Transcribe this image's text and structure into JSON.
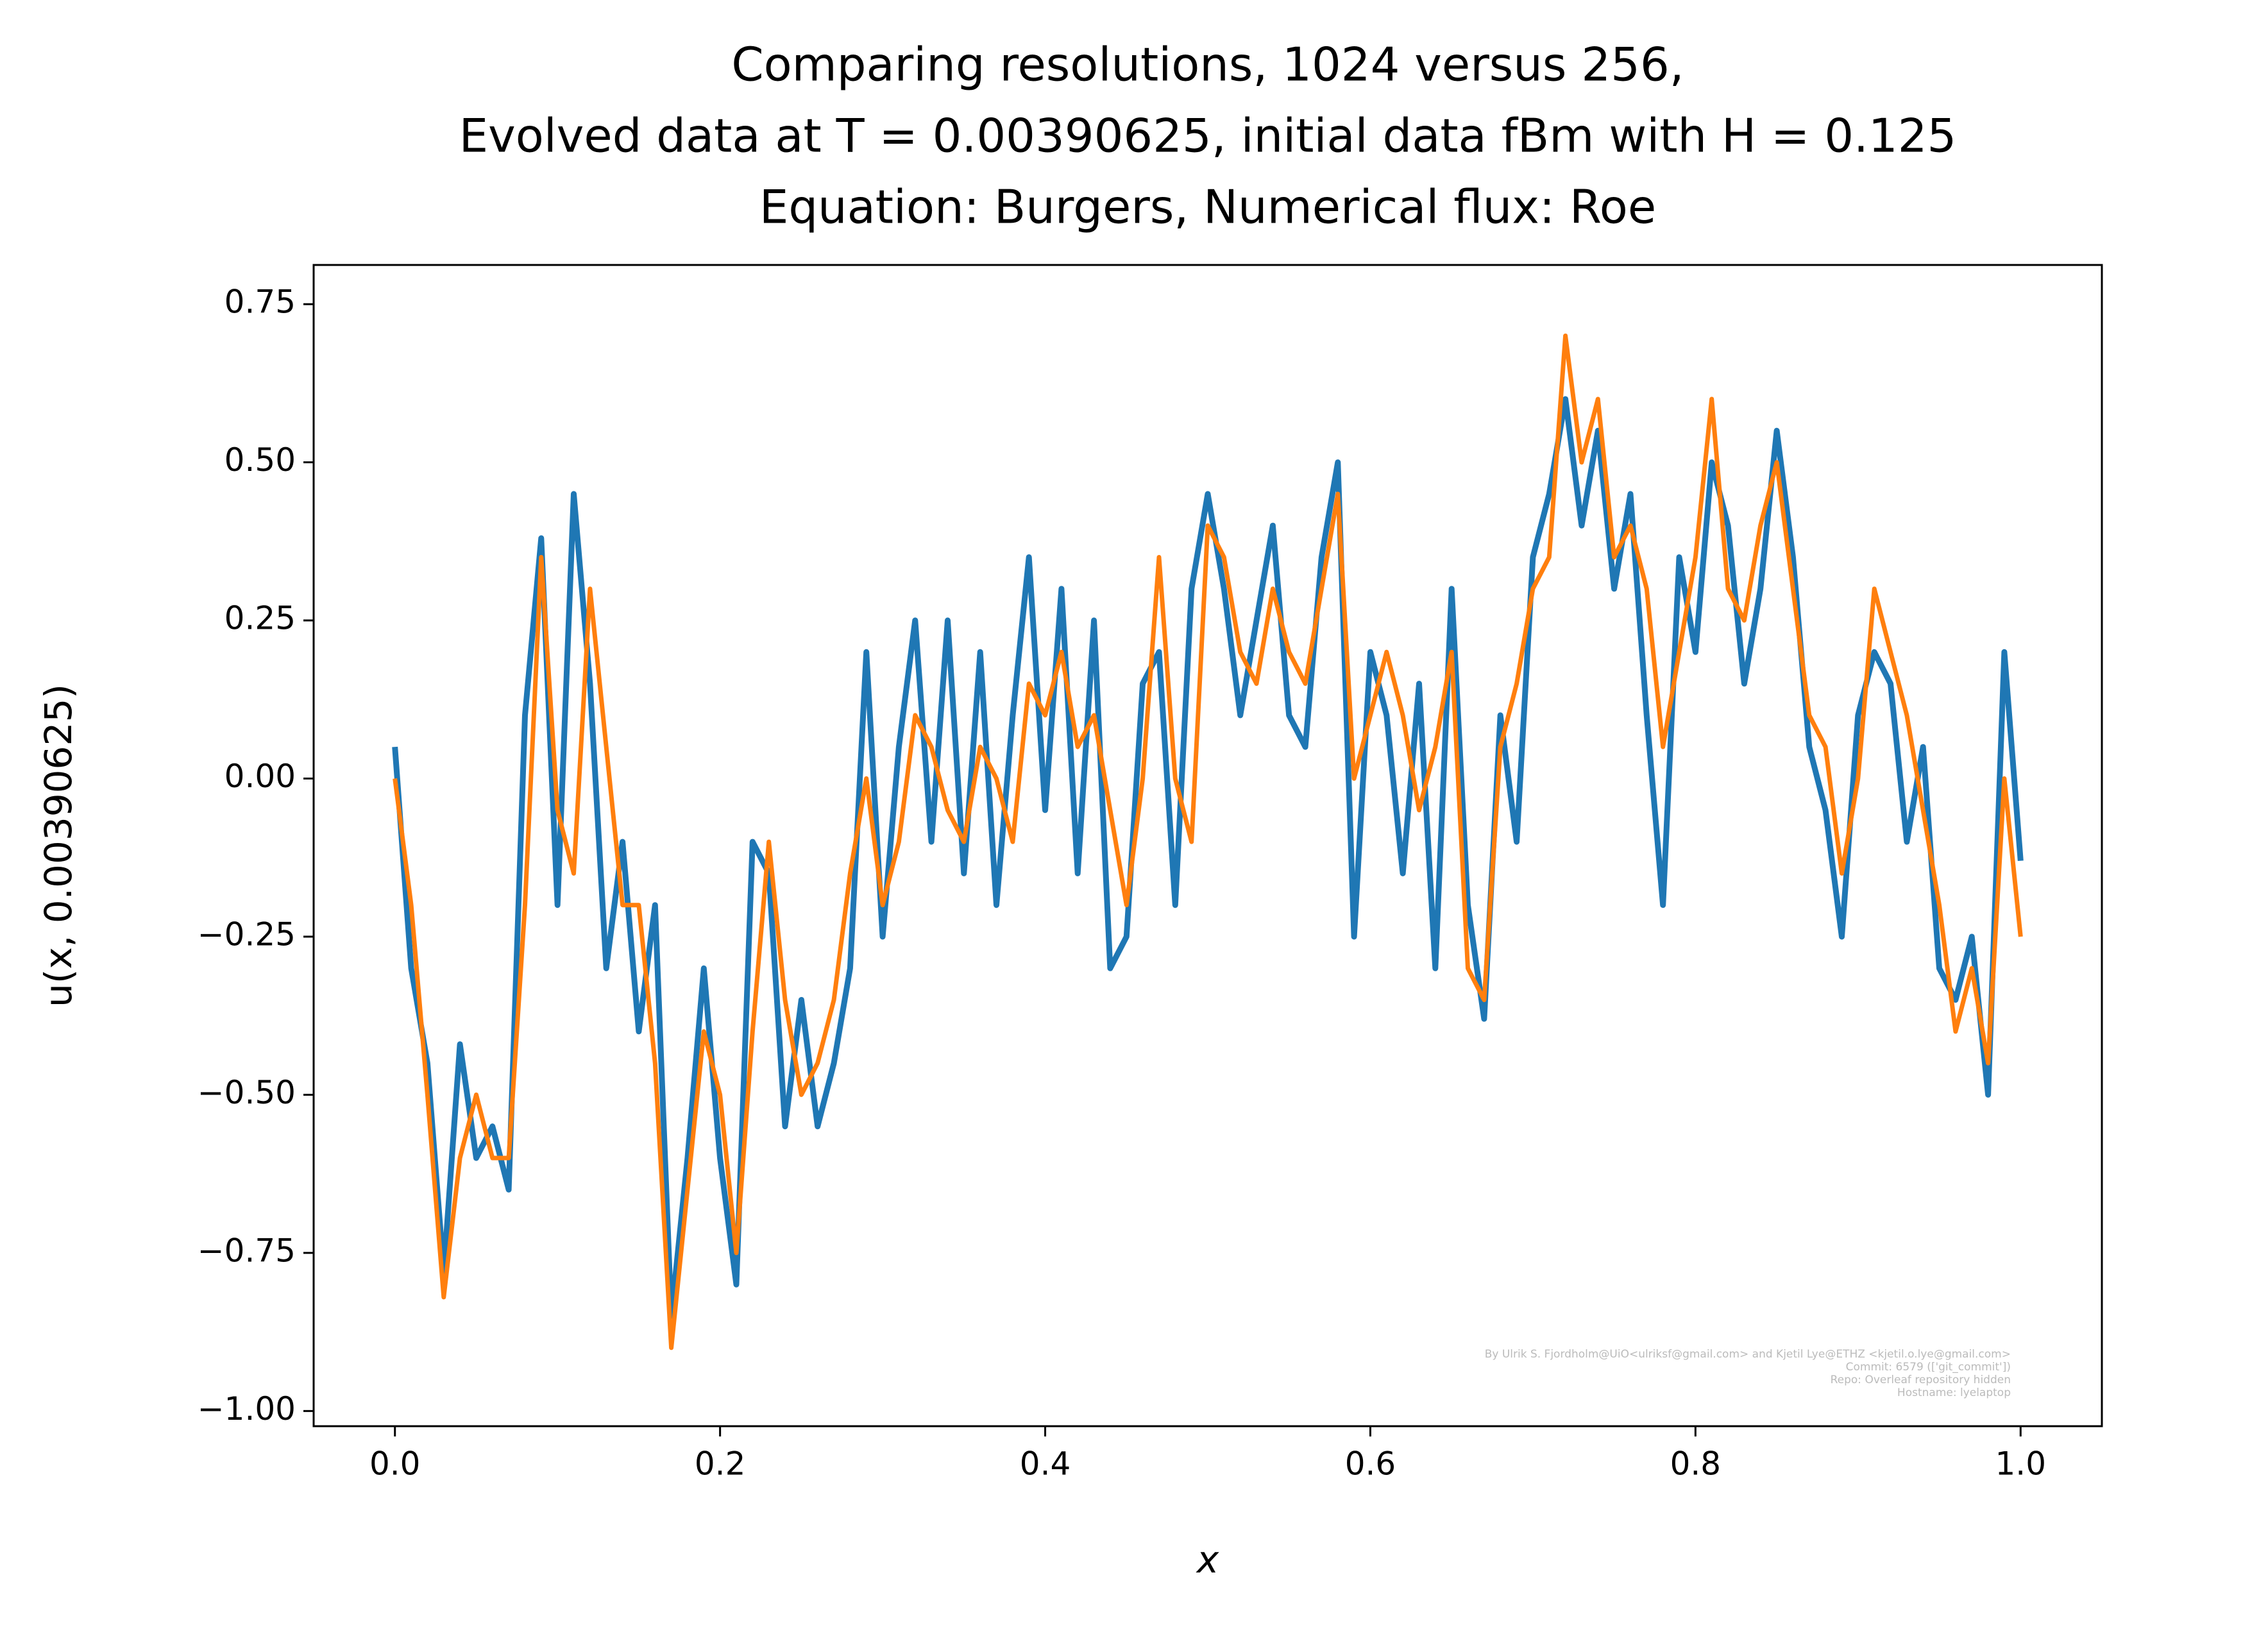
{
  "chart_data": {
    "type": "line",
    "title": [
      "Comparing resolutions, 1024 versus 256,",
      "Evolved data at T = 0.00390625, initial data fBm with H = 0.125",
      "Equation: Burgers, Numerical flux: Roe"
    ],
    "xlabel": "x",
    "ylabel": "u(x, 0.00390625)",
    "annotations": [
      "By Ulrik S. Fjordholm@UiO<ulriksf@gmail.com> and Kjetil Lye@ETHZ <kjetil.o.lye@gmail.com>",
      "Commit: 6579 (['git_commit'])",
      "Repo: Overleaf repository hidden",
      "Hostname: lyelaptop"
    ],
    "x": [
      0,
      0.01,
      0.02,
      0.03,
      0.04,
      0.05,
      0.06,
      0.07,
      0.08,
      0.09,
      0.1,
      0.11,
      0.12,
      0.13,
      0.14,
      0.15,
      0.16,
      0.17,
      0.18,
      0.19,
      0.2,
      0.21,
      0.22,
      0.23,
      0.24,
      0.25,
      0.26,
      0.27,
      0.28,
      0.29,
      0.3,
      0.31,
      0.32,
      0.33,
      0.34,
      0.35,
      0.36,
      0.37,
      0.38,
      0.39,
      0.4,
      0.41,
      0.42,
      0.43,
      0.44,
      0.45,
      0.46,
      0.47,
      0.48,
      0.49,
      0.5,
      0.51,
      0.52,
      0.53,
      0.54,
      0.55,
      0.56,
      0.57,
      0.58,
      0.59,
      0.6,
      0.61,
      0.62,
      0.63,
      0.64,
      0.65,
      0.66,
      0.67,
      0.68,
      0.69,
      0.7,
      0.71,
      0.72,
      0.73,
      0.74,
      0.75,
      0.76,
      0.77,
      0.78,
      0.79,
      0.8,
      0.81,
      0.82,
      0.83,
      0.84,
      0.85,
      0.86,
      0.87,
      0.88,
      0.89,
      0.9,
      0.91,
      0.92,
      0.93,
      0.94,
      0.95,
      0.96,
      0.97,
      0.98,
      0.99,
      1.0
    ],
    "series": [
      {
        "name": "1024",
        "color": "#1f77b4",
        "width": 9,
        "values": [
          0.05,
          -0.3,
          -0.45,
          -0.78,
          -0.42,
          -0.6,
          -0.55,
          -0.65,
          0.1,
          0.38,
          -0.2,
          0.45,
          0.15,
          -0.3,
          -0.1,
          -0.4,
          -0.2,
          -0.85,
          -0.6,
          -0.3,
          -0.6,
          -0.8,
          -0.1,
          -0.15,
          -0.55,
          -0.35,
          -0.55,
          -0.45,
          -0.3,
          0.2,
          -0.25,
          0.05,
          0.25,
          -0.1,
          0.25,
          -0.15,
          0.2,
          -0.2,
          0.1,
          0.35,
          -0.05,
          0.3,
          -0.15,
          0.25,
          -0.3,
          -0.25,
          0.15,
          0.2,
          -0.2,
          0.3,
          0.45,
          0.3,
          0.1,
          0.25,
          0.4,
          0.1,
          0.05,
          0.35,
          0.5,
          -0.25,
          0.2,
          0.1,
          -0.15,
          0.15,
          -0.3,
          0.3,
          -0.2,
          -0.38,
          0.1,
          -0.1,
          0.35,
          0.45,
          0.6,
          0.4,
          0.55,
          0.3,
          0.45,
          0.1,
          -0.2,
          0.35,
          0.2,
          0.5,
          0.4,
          0.15,
          0.3,
          0.55,
          0.35,
          0.05,
          -0.05,
          -0.25,
          0.1,
          0.2,
          0.15,
          -0.1,
          0.05,
          -0.3,
          -0.35,
          -0.25,
          -0.5,
          0.2,
          -0.13
        ]
      },
      {
        "name": "256",
        "color": "#ff7f0e",
        "width": 7,
        "values": [
          0.0,
          -0.2,
          -0.5,
          -0.82,
          -0.6,
          -0.5,
          -0.6,
          -0.6,
          -0.2,
          0.35,
          -0.05,
          -0.15,
          0.3,
          0.05,
          -0.2,
          -0.2,
          -0.45,
          -0.9,
          -0.65,
          -0.4,
          -0.5,
          -0.75,
          -0.4,
          -0.1,
          -0.35,
          -0.5,
          -0.45,
          -0.35,
          -0.15,
          0.0,
          -0.2,
          -0.1,
          0.1,
          0.05,
          -0.05,
          -0.1,
          0.05,
          0.0,
          -0.1,
          0.15,
          0.1,
          0.2,
          0.05,
          0.1,
          -0.05,
          -0.2,
          0.0,
          0.35,
          0.0,
          -0.1,
          0.4,
          0.35,
          0.2,
          0.15,
          0.3,
          0.2,
          0.15,
          0.3,
          0.45,
          0.0,
          0.1,
          0.2,
          0.1,
          -0.05,
          0.05,
          0.2,
          -0.3,
          -0.35,
          0.05,
          0.15,
          0.3,
          0.35,
          0.7,
          0.5,
          0.6,
          0.35,
          0.4,
          0.3,
          0.05,
          0.2,
          0.35,
          0.6,
          0.3,
          0.25,
          0.4,
          0.5,
          0.3,
          0.1,
          0.05,
          -0.15,
          0.0,
          0.3,
          0.2,
          0.1,
          -0.05,
          -0.2,
          -0.4,
          -0.3,
          -0.45,
          0.0,
          -0.25
        ]
      }
    ],
    "xlim": [
      -0.05,
      1.05
    ],
    "ylim": [
      -1.024,
      0.812
    ],
    "xticks": [
      {
        "value": 0,
        "label": "0.0"
      },
      0.2,
      0.4,
      0.6,
      0.8,
      {
        "value": 1,
        "label": "1.0"
      }
    ],
    "yticks": [
      {
        "value": -1,
        "label": "−1.00"
      },
      {
        "value": -0.75,
        "label": "−0.75"
      },
      {
        "value": -0.5,
        "label": "−0.50"
      },
      {
        "value": -0.25,
        "label": "−0.25"
      },
      {
        "value": 0,
        "label": "0.00"
      },
      {
        "value": 0.25,
        "label": "0.25"
      },
      {
        "value": 0.5,
        "label": "0.50"
      },
      {
        "value": 0.75,
        "label": "0.75"
      }
    ],
    "grid": false
  }
}
